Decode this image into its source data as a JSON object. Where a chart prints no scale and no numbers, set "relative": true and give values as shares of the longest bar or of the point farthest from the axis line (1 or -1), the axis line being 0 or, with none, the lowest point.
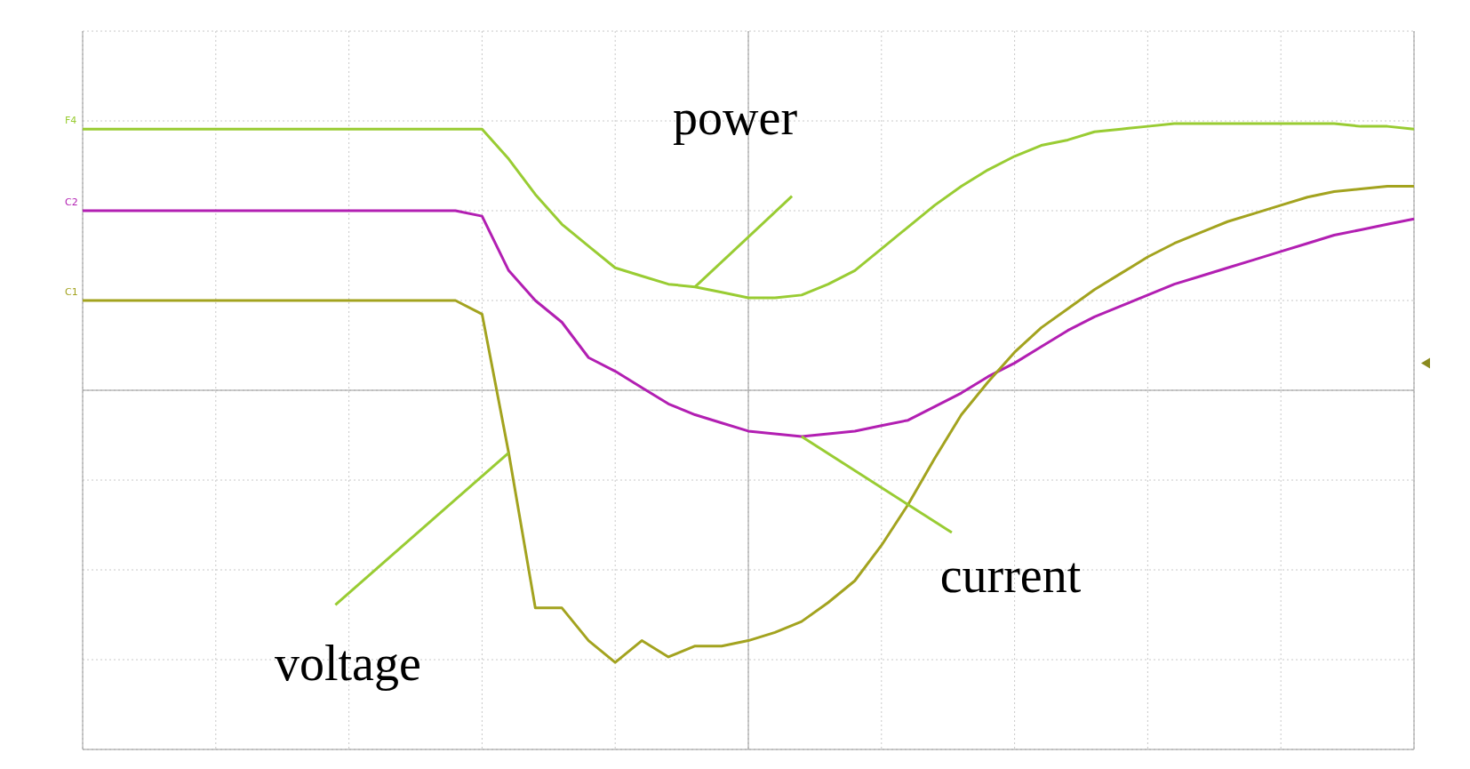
{
  "chart_data": {
    "type": "line",
    "relative": true,
    "grid": true,
    "categories": [
      null,
      null,
      null,
      null,
      null,
      null,
      null,
      null,
      null,
      null,
      null,
      null,
      null,
      null,
      null,
      null,
      null,
      null,
      null,
      null,
      null,
      null,
      null,
      null,
      null,
      null,
      null,
      null,
      null,
      null,
      null,
      null,
      null,
      null,
      null,
      null,
      null,
      null,
      null,
      null,
      null,
      null,
      null,
      null,
      null,
      null,
      null,
      null,
      null,
      null,
      null
    ],
    "series": [
      {
        "name": "power",
        "color": "#99cc33",
        "values": [
          0.96,
          0.96,
          0.96,
          0.96,
          0.96,
          0.96,
          0.96,
          0.96,
          0.96,
          0.96,
          0.96,
          0.96,
          0.96,
          0.96,
          0.96,
          0.96,
          0.85,
          0.72,
          0.61,
          0.53,
          0.45,
          0.42,
          0.39,
          0.38,
          0.36,
          0.34,
          0.34,
          0.35,
          0.39,
          0.44,
          0.52,
          0.6,
          0.68,
          0.75,
          0.81,
          0.86,
          0.9,
          0.92,
          0.95,
          0.96,
          0.97,
          0.98,
          0.98,
          0.98,
          0.98,
          0.98,
          0.98,
          0.98,
          0.97,
          0.97,
          0.96
        ]
      },
      {
        "name": "current",
        "color": "#b21fb2",
        "values": [
          0.66,
          0.66,
          0.66,
          0.66,
          0.66,
          0.66,
          0.66,
          0.66,
          0.66,
          0.66,
          0.66,
          0.66,
          0.66,
          0.66,
          0.66,
          0.64,
          0.44,
          0.33,
          0.25,
          0.12,
          0.07,
          0.01,
          -0.05,
          -0.09,
          -0.12,
          -0.15,
          -0.16,
          -0.17,
          -0.16,
          -0.15,
          -0.13,
          -0.11,
          -0.06,
          -0.01,
          0.05,
          0.1,
          0.16,
          0.22,
          0.27,
          0.31,
          0.35,
          0.39,
          0.42,
          0.45,
          0.48,
          0.51,
          0.54,
          0.57,
          0.59,
          0.61,
          0.63
        ]
      },
      {
        "name": "voltage",
        "color": "#a3a31f",
        "values": [
          0.33,
          0.33,
          0.33,
          0.33,
          0.33,
          0.33,
          0.33,
          0.33,
          0.33,
          0.33,
          0.33,
          0.33,
          0.33,
          0.33,
          0.33,
          0.28,
          -0.23,
          -0.8,
          -0.8,
          -0.92,
          -1,
          -0.92,
          -0.98,
          -0.94,
          -0.94,
          -0.92,
          -0.89,
          -0.85,
          -0.78,
          -0.7,
          -0.57,
          -0.42,
          -0.25,
          -0.09,
          0.03,
          0.14,
          0.23,
          0.3,
          0.37,
          0.43,
          0.49,
          0.54,
          0.58,
          0.62,
          0.65,
          0.68,
          0.71,
          0.73,
          0.74,
          0.75,
          0.75
        ]
      }
    ],
    "annotations": [
      "F4",
      "C2",
      "C1"
    ]
  }
}
